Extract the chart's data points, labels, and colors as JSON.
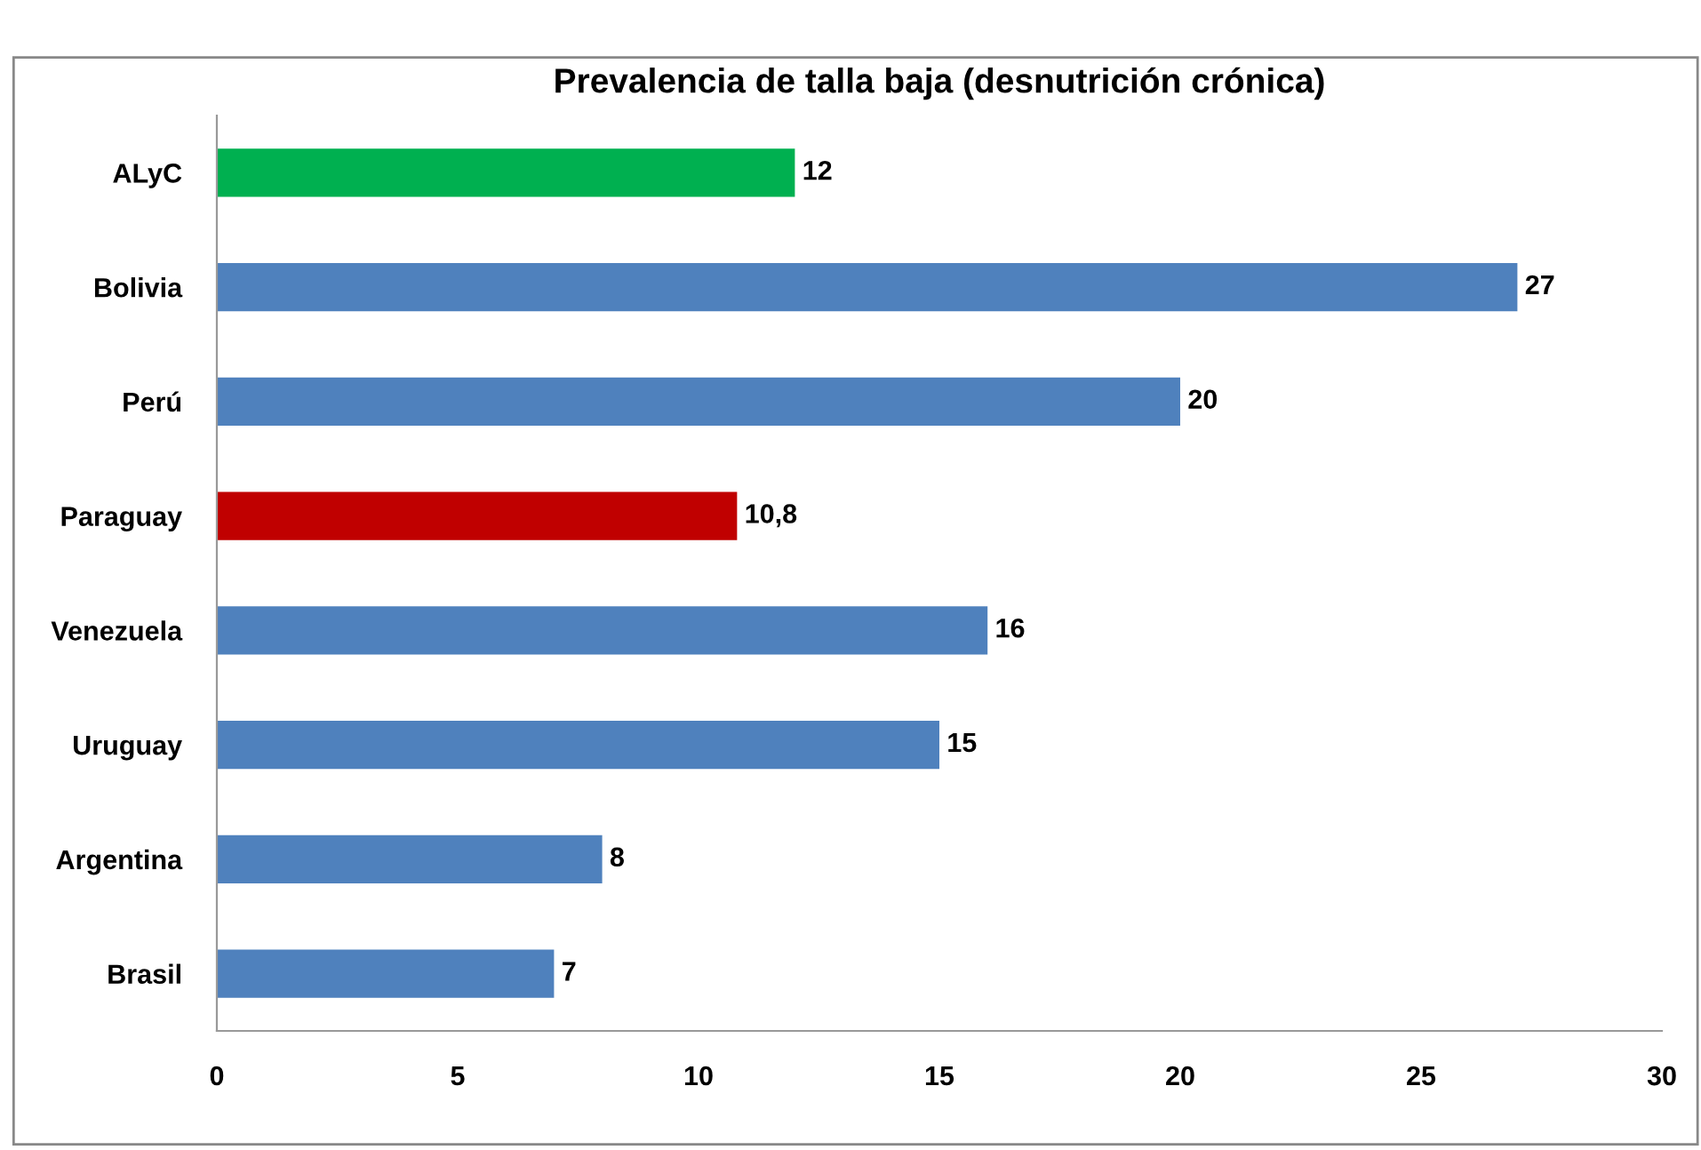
{
  "chart_data": {
    "type": "bar",
    "orientation": "horizontal",
    "title": "Prevalencia de talla baja (desnutrición crónica)",
    "categories": [
      "ALyC",
      "Bolivia",
      "Perú",
      "Paraguay",
      "Venezuela",
      "Uruguay",
      "Argentina",
      "Brasil"
    ],
    "values": [
      12,
      27,
      20,
      10.8,
      16,
      15,
      8,
      7
    ],
    "colors": [
      "#00b050",
      "#4f81bd",
      "#4f81bd",
      "#c00000",
      "#4f81bd",
      "#4f81bd",
      "#4f81bd",
      "#4f81bd"
    ],
    "value_labels": [
      "12",
      "27",
      "20",
      "10,8",
      "16",
      "15",
      "8",
      "7"
    ],
    "xlim": [
      0,
      30
    ],
    "xticks": [
      0,
      5,
      10,
      15,
      20,
      25,
      30
    ],
    "grid": false,
    "legend": false
  }
}
